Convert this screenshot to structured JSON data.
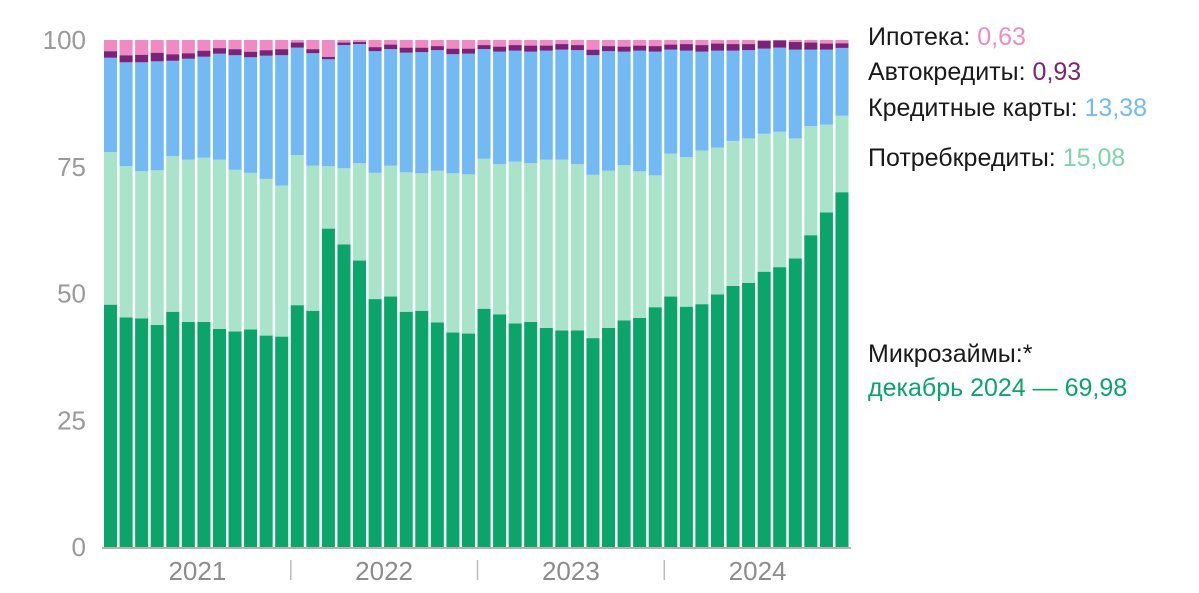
{
  "colors": {
    "mortgage": "#f08ac4",
    "auto": "#7a2378",
    "cards": "#73b9f4",
    "consumer": "#a9e3c9",
    "micro": "#0ba56a",
    "axis": "#9a9a9a"
  },
  "legend": {
    "mortgage_label": "Ипотека: ",
    "mortgage_value": "0,63",
    "auto_label": "Автокредиты: ",
    "auto_value": "0,93",
    "cards_label": "Кредитные карты: ",
    "cards_value": "13,38",
    "consumer_label": "Потребкредиты: ",
    "consumer_value": "15,08",
    "micro_label": "Микрозаймы:*",
    "micro_value": "декабрь 2024 — 69,98"
  },
  "chart_data": {
    "type": "bar",
    "stacked": true,
    "ylim": [
      0,
      100
    ],
    "yticks": [
      "0",
      "25",
      "50",
      "75",
      "100"
    ],
    "year_labels": [
      "2021",
      "2022",
      "2023",
      "2024"
    ],
    "x_start": "2020-07",
    "x_end": "2024-12",
    "series": [
      {
        "name": "Микрозаймы",
        "color_key": "micro",
        "values": [
          47.8,
          45.3,
          45.1,
          43.8,
          46.4,
          44.4,
          44.4,
          43.0,
          42.5,
          42.9,
          41.7,
          41.5,
          47.7,
          46.6,
          62.8,
          59.7,
          56.5,
          48.9,
          49.4,
          46.4,
          46.6,
          44.3,
          42.3,
          42.1,
          47.0,
          45.9,
          44.1,
          44.4,
          43.2,
          42.7,
          42.7,
          41.2,
          43.2,
          44.7,
          45.2,
          47.3,
          49.4,
          47.4,
          47.9,
          49.8,
          51.5,
          52.1,
          54.3,
          55.2,
          56.9,
          61.5,
          66.0,
          69.98
        ]
      },
      {
        "name": "Потребкредиты",
        "color_key": "consumer",
        "values": [
          30.1,
          29.8,
          29.0,
          30.5,
          30.7,
          32.0,
          32.4,
          33.4,
          31.9,
          30.9,
          30.9,
          29.8,
          29.6,
          28.6,
          12.3,
          15.0,
          19.2,
          24.9,
          25.8,
          27.5,
          27.1,
          29.9,
          31.4,
          31.4,
          29.6,
          29.6,
          31.9,
          31.3,
          33.2,
          33.7,
          32.8,
          32.2,
          31.0,
          30.6,
          28.9,
          26.0,
          28.2,
          29.5,
          30.3,
          29.0,
          28.6,
          28.5,
          27.2,
          26.7,
          23.7,
          21.5,
          17.3,
          15.08
        ]
      },
      {
        "name": "Кредитные карты",
        "color_key": "cards",
        "values": [
          18.6,
          20.5,
          21.5,
          21.5,
          18.8,
          19.9,
          19.9,
          20.9,
          22.6,
          22.8,
          24.3,
          25.7,
          21.2,
          22.2,
          21.1,
          24.3,
          23.5,
          24.0,
          23.0,
          23.6,
          23.9,
          23.8,
          23.5,
          23.8,
          21.6,
          22.2,
          21.9,
          22.0,
          21.5,
          21.7,
          22.5,
          23.6,
          23.6,
          22.4,
          23.8,
          24.4,
          20.5,
          21.0,
          19.5,
          19.1,
          17.8,
          17.4,
          16.8,
          16.6,
          17.5,
          15.1,
          14.8,
          13.38
        ]
      },
      {
        "name": "Автокредиты",
        "color_key": "auto",
        "values": [
          1.3,
          1.4,
          1.5,
          1.7,
          1.3,
          1.1,
          1.2,
          1.1,
          1.2,
          1.1,
          1.1,
          1.2,
          1.0,
          0.8,
          0.5,
          0.5,
          0.4,
          0.8,
          0.9,
          1.0,
          0.9,
          0.8,
          1.1,
          1.0,
          0.8,
          1.0,
          1.1,
          1.2,
          1.0,
          1.1,
          1.0,
          1.1,
          1.0,
          1.0,
          1.0,
          1.1,
          1.0,
          1.3,
          1.3,
          1.4,
          1.3,
          1.2,
          1.5,
          1.4,
          1.5,
          1.4,
          1.2,
          0.93
        ]
      },
      {
        "name": "Ипотека",
        "color_key": "mortgage",
        "values": [
          2.2,
          3.0,
          2.9,
          2.5,
          2.8,
          2.6,
          2.1,
          1.6,
          1.8,
          2.3,
          2.0,
          1.8,
          0.5,
          1.8,
          3.3,
          0.5,
          0.4,
          1.4,
          0.9,
          1.5,
          1.5,
          1.2,
          1.7,
          1.7,
          1.0,
          1.3,
          1.0,
          1.1,
          1.1,
          0.8,
          1.0,
          1.9,
          1.2,
          1.3,
          1.1,
          1.2,
          0.9,
          0.8,
          1.0,
          0.7,
          0.8,
          0.8,
          0.2,
          0.1,
          0.4,
          0.5,
          0.7,
          0.63
        ]
      }
    ]
  }
}
